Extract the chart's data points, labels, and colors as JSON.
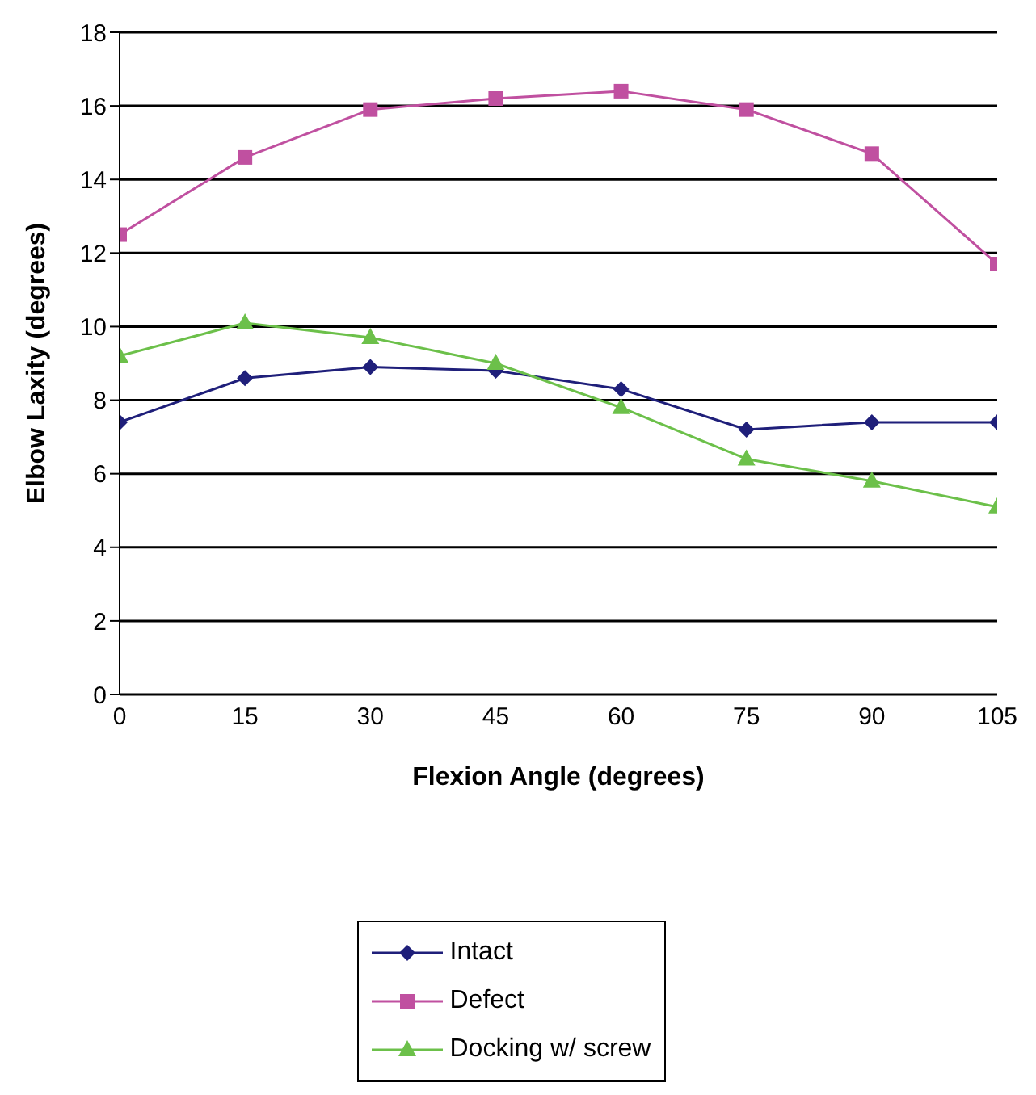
{
  "chart_data": {
    "type": "line",
    "xlabel": "Flexion Angle (degrees)",
    "ylabel": "Elbow Laxity (degrees)",
    "x": [
      0,
      15,
      30,
      45,
      60,
      75,
      90,
      105
    ],
    "series": [
      {
        "name": "Intact",
        "color": "#1f1f7a",
        "marker": "diamond",
        "values": [
          7.4,
          8.6,
          8.9,
          8.8,
          8.3,
          7.2,
          7.4,
          7.4
        ]
      },
      {
        "name": "Defect",
        "color": "#c050a0",
        "marker": "square",
        "values": [
          12.5,
          14.6,
          15.9,
          16.2,
          16.4,
          15.9,
          14.7,
          11.7
        ]
      },
      {
        "name": "Docking w/ screw",
        "color": "#6cc04a",
        "marker": "triangle",
        "values": [
          9.2,
          10.1,
          9.7,
          9.0,
          7.8,
          6.4,
          5.8,
          5.1
        ]
      }
    ],
    "xlim": [
      0,
      105
    ],
    "xticks": [
      0,
      15,
      30,
      45,
      60,
      75,
      90,
      105
    ],
    "ylim": [
      0,
      18
    ],
    "yticks": [
      0,
      2,
      4,
      6,
      8,
      10,
      12,
      14,
      16,
      18
    ],
    "grid": "y",
    "legend": "bottom",
    "line_style": "solid"
  }
}
